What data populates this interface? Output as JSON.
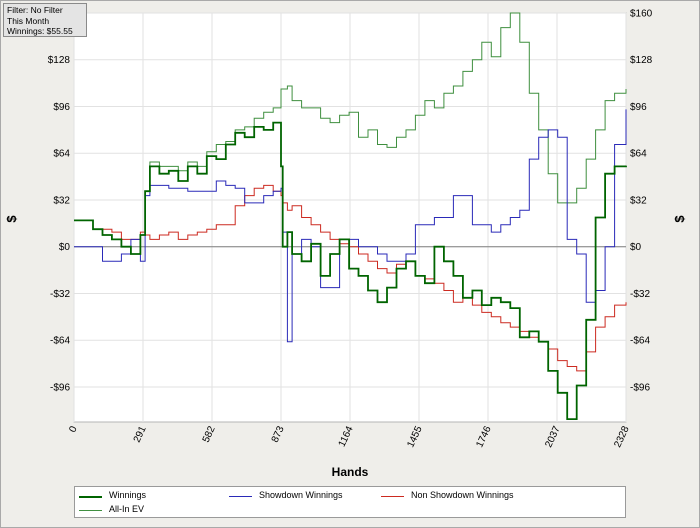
{
  "info_box": {
    "filter_line": "Filter: No Filter",
    "period_line": "This Month",
    "winnings_line": "Winnings: $55.55"
  },
  "colors": {
    "winnings": "#006400",
    "showdown": "#2a2ab8",
    "non_showdown": "#cc2a20",
    "allin_ev": "#3f8f3f",
    "zero_line": "#808080",
    "grid": "#e2e2e2"
  },
  "chart_data": {
    "type": "line",
    "title": "",
    "xlabel": "Hands",
    "ylabel_left": "$",
    "ylabel_right": "$",
    "xlim": [
      0,
      2328
    ],
    "ylim": [
      -120,
      160
    ],
    "x_ticks": [
      0,
      291,
      582,
      873,
      1164,
      1455,
      1746,
      2037,
      2328
    ],
    "y_ticks": [
      -96,
      -64,
      -32,
      0,
      32,
      64,
      96,
      128,
      160
    ],
    "y_tick_labels": [
      "-$96",
      "-$64",
      "-$32",
      "$0",
      "$32",
      "$64",
      "$96",
      "$128",
      "$160"
    ],
    "legend_position": "bottom",
    "grid": true,
    "series": [
      {
        "name": "Winnings",
        "color_key": "winnings",
        "x": [
          0,
          40,
          80,
          120,
          160,
          200,
          240,
          280,
          300,
          320,
          360,
          400,
          440,
          480,
          520,
          560,
          600,
          640,
          680,
          720,
          760,
          800,
          840,
          873,
          880,
          900,
          920,
          960,
          1000,
          1040,
          1080,
          1120,
          1160,
          1200,
          1240,
          1280,
          1320,
          1360,
          1400,
          1440,
          1480,
          1520,
          1560,
          1600,
          1640,
          1680,
          1720,
          1760,
          1800,
          1840,
          1880,
          1920,
          1960,
          2000,
          2040,
          2080,
          2120,
          2160,
          2200,
          2240,
          2280,
          2328
        ],
        "y": [
          18,
          18,
          12,
          8,
          5,
          0,
          -5,
          8,
          38,
          55,
          50,
          52,
          45,
          55,
          50,
          62,
          60,
          70,
          78,
          75,
          82,
          80,
          85,
          55,
          0,
          10,
          -5,
          -10,
          2,
          -20,
          -5,
          5,
          -15,
          -20,
          -30,
          -38,
          -28,
          -15,
          -10,
          -20,
          -25,
          0,
          -10,
          -20,
          -35,
          -30,
          -40,
          -35,
          -38,
          -42,
          -62,
          -58,
          -65,
          -85,
          -100,
          -118,
          -95,
          -50,
          20,
          50,
          55,
          55.55
        ]
      },
      {
        "name": "Showdown Winnings",
        "color_key": "showdown",
        "x": [
          0,
          40,
          80,
          120,
          160,
          200,
          240,
          280,
          300,
          320,
          360,
          400,
          440,
          480,
          520,
          560,
          600,
          640,
          680,
          720,
          760,
          800,
          840,
          873,
          880,
          900,
          920,
          960,
          1000,
          1040,
          1080,
          1120,
          1160,
          1200,
          1240,
          1280,
          1320,
          1360,
          1400,
          1440,
          1480,
          1520,
          1560,
          1600,
          1640,
          1680,
          1720,
          1760,
          1800,
          1840,
          1880,
          1920,
          1960,
          2000,
          2040,
          2080,
          2120,
          2160,
          2200,
          2240,
          2280,
          2328
        ],
        "y": [
          0,
          0,
          0,
          -10,
          -10,
          -5,
          5,
          -10,
          35,
          42,
          42,
          40,
          40,
          38,
          38,
          38,
          45,
          42,
          40,
          30,
          30,
          35,
          38,
          40,
          10,
          -65,
          -5,
          5,
          0,
          -28,
          -28,
          5,
          5,
          0,
          0,
          -5,
          -10,
          -10,
          -5,
          15,
          15,
          20,
          20,
          35,
          35,
          15,
          15,
          10,
          15,
          20,
          25,
          60,
          75,
          80,
          75,
          5,
          -5,
          -38,
          -30,
          0,
          70,
          94
        ]
      },
      {
        "name": "Non Showdown Winnings",
        "color_key": "non_showdown",
        "x": [
          0,
          40,
          80,
          120,
          160,
          200,
          240,
          280,
          300,
          320,
          360,
          400,
          440,
          480,
          520,
          560,
          600,
          640,
          680,
          720,
          760,
          800,
          840,
          873,
          880,
          900,
          920,
          960,
          1000,
          1040,
          1080,
          1120,
          1160,
          1200,
          1240,
          1280,
          1320,
          1360,
          1400,
          1440,
          1480,
          1520,
          1560,
          1600,
          1640,
          1680,
          1720,
          1760,
          1800,
          1840,
          1880,
          1920,
          1960,
          2000,
          2040,
          2080,
          2120,
          2160,
          2200,
          2240,
          2280,
          2328
        ],
        "y": [
          18,
          18,
          12,
          12,
          10,
          5,
          5,
          10,
          8,
          5,
          8,
          10,
          5,
          8,
          10,
          12,
          15,
          15,
          28,
          35,
          40,
          42,
          38,
          35,
          30,
          25,
          28,
          20,
          15,
          10,
          5,
          2,
          0,
          -5,
          -10,
          -15,
          -18,
          -12,
          -10,
          -20,
          -22,
          -25,
          -30,
          -38,
          -35,
          -40,
          -45,
          -48,
          -52,
          -55,
          -58,
          -62,
          -65,
          -70,
          -78,
          -82,
          -85,
          -72,
          -55,
          -48,
          -40,
          -38
        ]
      },
      {
        "name": "All-In EV",
        "color_key": "allin_ev",
        "x": [
          0,
          40,
          80,
          120,
          160,
          200,
          240,
          280,
          300,
          320,
          360,
          400,
          440,
          480,
          520,
          560,
          600,
          640,
          680,
          720,
          760,
          800,
          840,
          873,
          880,
          900,
          920,
          960,
          1000,
          1040,
          1080,
          1120,
          1160,
          1200,
          1240,
          1280,
          1320,
          1360,
          1400,
          1440,
          1480,
          1520,
          1560,
          1600,
          1640,
          1680,
          1720,
          1760,
          1800,
          1840,
          1880,
          1920,
          1960,
          2000,
          2040,
          2080,
          2120,
          2160,
          2200,
          2240,
          2280,
          2328
        ],
        "y": [
          18,
          18,
          12,
          8,
          5,
          0,
          -5,
          8,
          38,
          58,
          55,
          55,
          52,
          58,
          55,
          65,
          70,
          72,
          80,
          82,
          88,
          92,
          95,
          108,
          108,
          110,
          100,
          95,
          95,
          88,
          85,
          90,
          92,
          75,
          80,
          70,
          68,
          75,
          80,
          90,
          100,
          95,
          105,
          110,
          120,
          128,
          140,
          130,
          150,
          160,
          140,
          105,
          80,
          50,
          30,
          30,
          40,
          60,
          80,
          100,
          105,
          108
        ]
      }
    ]
  }
}
